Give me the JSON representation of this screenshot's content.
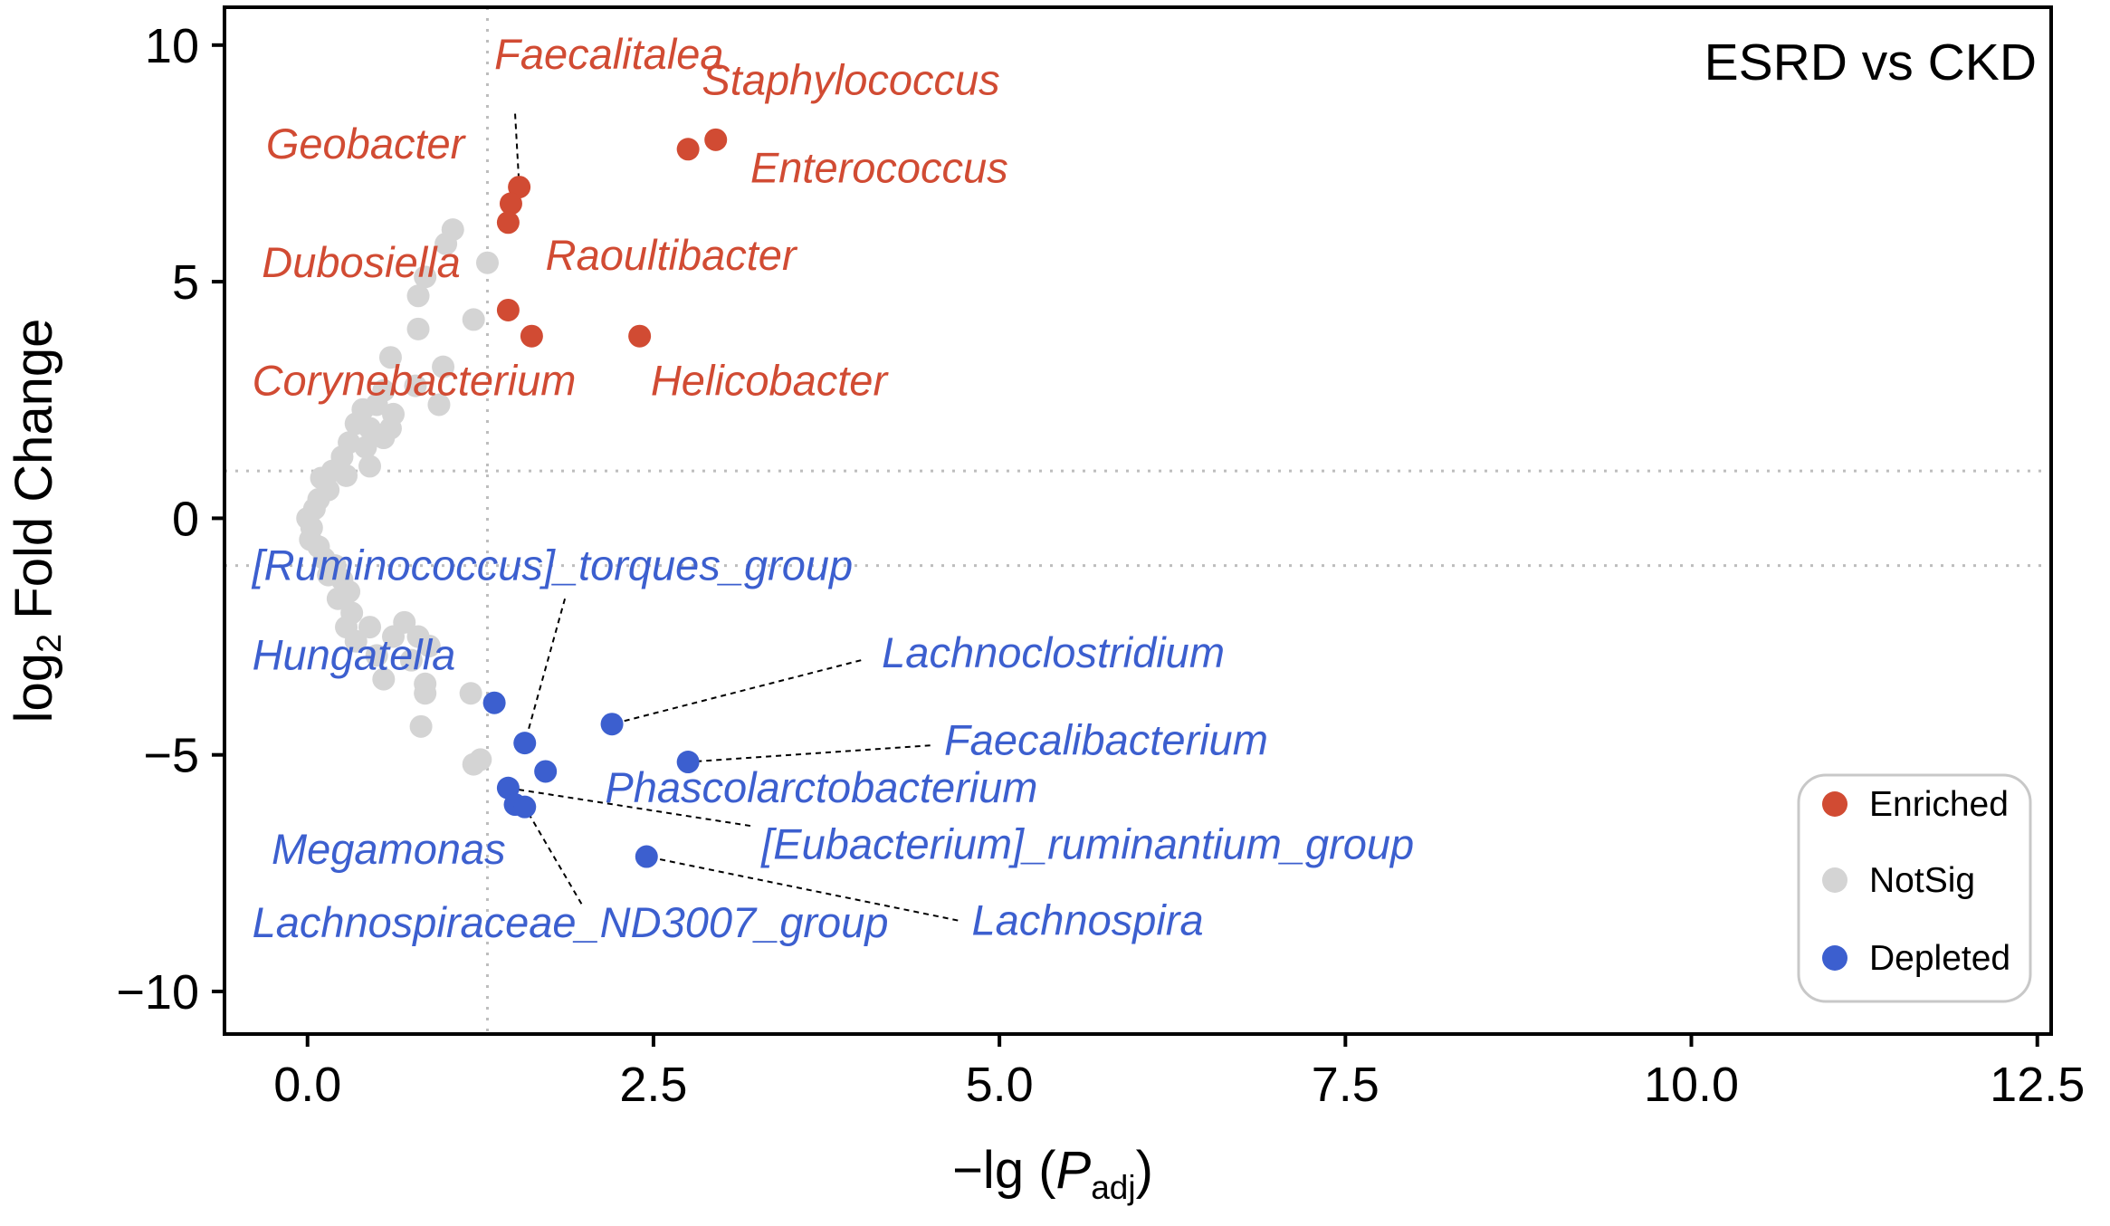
{
  "chart_data": {
    "type": "scatter",
    "title": "ESRD vs CKD",
    "xlabel_main": "−lg (",
    "xlabel_italic": "P",
    "xlabel_sub": "adj",
    "xlabel_close": ")",
    "ylabel_main": "log",
    "ylabel_sub": "2",
    "ylabel_rest": " Fold Change",
    "xlim": [
      -0.6,
      12.6
    ],
    "ylim": [
      -10.9,
      10.8
    ],
    "xticks": [
      0.0,
      2.5,
      5.0,
      7.5,
      10.0,
      12.5
    ],
    "xtick_labels": [
      "0.0",
      "2.5",
      "5.0",
      "7.5",
      "10.0",
      "12.5"
    ],
    "yticks": [
      10,
      5,
      0,
      -5,
      -10
    ],
    "ytick_labels": [
      "10",
      "5",
      "0",
      "−5",
      "−10"
    ],
    "thresholds": {
      "x": 1.3,
      "y": [
        1,
        -1
      ]
    },
    "colors": {
      "Enriched": "#d14b33",
      "NotSig": "#d4d4d4",
      "Depleted": "#3c5fcf"
    },
    "legend": [
      "Enriched",
      "NotSig",
      "Depleted"
    ],
    "series": [
      {
        "name": "Enriched",
        "points": [
          {
            "label": "Staphylococcus",
            "x": 2.95,
            "y": 8.0
          },
          {
            "label": "Enterococcus",
            "x": 2.75,
            "y": 7.8
          },
          {
            "label": "Faecalitalea",
            "x": 1.53,
            "y": 7.0
          },
          {
            "label": "Geobacter",
            "x": 1.47,
            "y": 6.65
          },
          {
            "label": "Dubosiella",
            "x": 1.45,
            "y": 6.25
          },
          {
            "label": "Corynebacterium",
            "x": 1.45,
            "y": 4.4
          },
          {
            "label": "Raoultibacter",
            "x": 1.62,
            "y": 3.85
          },
          {
            "label": "Helicobacter",
            "x": 2.4,
            "y": 3.85
          }
        ]
      },
      {
        "name": "NotSig",
        "points": [
          {
            "x": 1.05,
            "y": 6.1
          },
          {
            "x": 1.0,
            "y": 5.8
          },
          {
            "x": 1.3,
            "y": 5.4
          },
          {
            "x": 0.85,
            "y": 5.1
          },
          {
            "x": 0.8,
            "y": 4.7
          },
          {
            "x": 0.8,
            "y": 4.0
          },
          {
            "x": 1.2,
            "y": 4.2
          },
          {
            "x": 0.6,
            "y": 3.4
          },
          {
            "x": 0.98,
            "y": 3.2
          },
          {
            "x": 0.78,
            "y": 2.8
          },
          {
            "x": 0.95,
            "y": 2.4
          },
          {
            "x": 0.55,
            "y": 2.7
          },
          {
            "x": 0.5,
            "y": 2.4
          },
          {
            "x": 0.62,
            "y": 2.2
          },
          {
            "x": 0.4,
            "y": 2.3
          },
          {
            "x": 0.35,
            "y": 2.0
          },
          {
            "x": 0.45,
            "y": 1.9
          },
          {
            "x": 0.55,
            "y": 1.7
          },
          {
            "x": 0.6,
            "y": 1.9
          },
          {
            "x": 0.3,
            "y": 1.6
          },
          {
            "x": 0.42,
            "y": 1.5
          },
          {
            "x": 0.25,
            "y": 1.3
          },
          {
            "x": 0.45,
            "y": 1.1
          },
          {
            "x": 0.18,
            "y": 1.0
          },
          {
            "x": 0.28,
            "y": 0.9
          },
          {
            "x": 0.1,
            "y": 0.85
          },
          {
            "x": 0.15,
            "y": 0.6
          },
          {
            "x": 0.08,
            "y": 0.4
          },
          {
            "x": 0.05,
            "y": 0.2
          },
          {
            "x": 0.0,
            "y": 0.0
          },
          {
            "x": 0.03,
            "y": -0.2
          },
          {
            "x": 0.02,
            "y": -0.45
          },
          {
            "x": 0.08,
            "y": -0.6
          },
          {
            "x": 0.12,
            "y": -0.85
          },
          {
            "x": 0.2,
            "y": -1.0
          },
          {
            "x": 0.15,
            "y": -1.2
          },
          {
            "x": 0.25,
            "y": -1.3
          },
          {
            "x": 0.3,
            "y": -1.55
          },
          {
            "x": 0.22,
            "y": -1.7
          },
          {
            "x": 0.32,
            "y": -2.0
          },
          {
            "x": 0.28,
            "y": -2.3
          },
          {
            "x": 0.35,
            "y": -2.6
          },
          {
            "x": 0.45,
            "y": -2.3
          },
          {
            "x": 0.5,
            "y": -2.9
          },
          {
            "x": 0.62,
            "y": -2.5
          },
          {
            "x": 0.7,
            "y": -2.2
          },
          {
            "x": 0.8,
            "y": -2.5
          },
          {
            "x": 0.88,
            "y": -2.7
          },
          {
            "x": 0.75,
            "y": -3.0
          },
          {
            "x": 0.55,
            "y": -3.4
          },
          {
            "x": 0.85,
            "y": -3.5
          },
          {
            "x": 0.85,
            "y": -3.7
          },
          {
            "x": 1.18,
            "y": -3.7
          },
          {
            "x": 0.82,
            "y": -4.4
          },
          {
            "x": 1.2,
            "y": -5.2
          },
          {
            "x": 1.25,
            "y": -5.1
          }
        ]
      },
      {
        "name": "Depleted",
        "points": [
          {
            "label": "Hungatella",
            "x": 1.35,
            "y": -3.9
          },
          {
            "label": "Lachnoclostridium",
            "x": 2.2,
            "y": -4.35
          },
          {
            "label": "[Ruminococcus]_torques_group",
            "x": 1.57,
            "y": -4.75
          },
          {
            "label": "Faecalibacterium",
            "x": 2.75,
            "y": -5.15
          },
          {
            "label": "Phascolarctobacterium",
            "x": 1.72,
            "y": -5.35
          },
          {
            "label": "[Eubacterium]_ruminantium_group",
            "x": 1.45,
            "y": -5.7
          },
          {
            "label": "Megamonas",
            "x": 1.5,
            "y": -6.05
          },
          {
            "label": "Lachnospiraceae_ND3007_group",
            "x": 1.57,
            "y": -6.1
          },
          {
            "label": "Lachnospira",
            "x": 2.45,
            "y": -7.15
          }
        ]
      }
    ],
    "annotations": [
      {
        "text": "Faecalitalea",
        "group": "Enriched",
        "tx": 1.35,
        "ty": 9.5,
        "connector": true,
        "cx": 1.53,
        "cy": 7.0,
        "lx": 1.5,
        "ly": 8.55
      },
      {
        "text": "Staphylococcus",
        "group": "Enriched",
        "tx": 2.85,
        "ty": 8.95
      },
      {
        "text": "Geobacter",
        "group": "Enriched",
        "tx": -0.3,
        "ty": 7.6
      },
      {
        "text": "Enterococcus",
        "group": "Enriched",
        "tx": 3.2,
        "ty": 7.1
      },
      {
        "text": "Dubosiella",
        "group": "Enriched",
        "tx": -0.33,
        "ty": 5.1
      },
      {
        "text": "Raoultibacter",
        "group": "Enriched",
        "tx": 1.72,
        "ty": 5.25
      },
      {
        "text": "Corynebacterium",
        "group": "Enriched",
        "tx": -0.4,
        "ty": 2.6
      },
      {
        "text": "Helicobacter",
        "group": "Enriched",
        "tx": 2.48,
        "ty": 2.6
      },
      {
        "text": "[Ruminococcus]_torques_group",
        "group": "Depleted",
        "tx": -0.4,
        "ty": -1.3,
        "connector": true,
        "cx": 1.57,
        "cy": -4.75,
        "lx": 1.86,
        "ly": -1.7
      },
      {
        "text": "Hungatella",
        "group": "Depleted",
        "tx": -0.4,
        "ty": -3.2
      },
      {
        "text": "Lachnoclostridium",
        "group": "Depleted",
        "tx": 4.15,
        "ty": -3.15,
        "connector": true,
        "cx": 2.2,
        "cy": -4.35,
        "lx": 4.0,
        "ly": -3.0
      },
      {
        "text": "Faecalibacterium",
        "group": "Depleted",
        "tx": 4.6,
        "ty": -5.0,
        "connector": true,
        "cx": 2.75,
        "cy": -5.15,
        "lx": 4.5,
        "ly": -4.8
      },
      {
        "text": "Phascolarctobacterium",
        "group": "Depleted",
        "tx": 2.15,
        "ty": -6.0
      },
      {
        "text": "[Eubacterium]_ruminantium_group",
        "group": "Depleted",
        "tx": 3.28,
        "ty": -7.2,
        "connector": true,
        "cx": 1.45,
        "cy": -5.7,
        "lx": 3.2,
        "ly": -6.5
      },
      {
        "text": "Megamonas",
        "group": "Depleted",
        "tx": -0.26,
        "ty": -7.3
      },
      {
        "text": "Lachnospira",
        "group": "Depleted",
        "tx": 4.8,
        "ty": -8.8,
        "connector": true,
        "cx": 2.45,
        "cy": -7.15,
        "lx": 4.7,
        "ly": -8.5
      },
      {
        "text": "Lachnospiraceae_ND3007_group",
        "group": "Depleted",
        "tx": -0.4,
        "ty": -8.85,
        "connector": true,
        "cx": 1.57,
        "cy": -6.1,
        "lx": 1.98,
        "ly": -8.15
      }
    ]
  }
}
